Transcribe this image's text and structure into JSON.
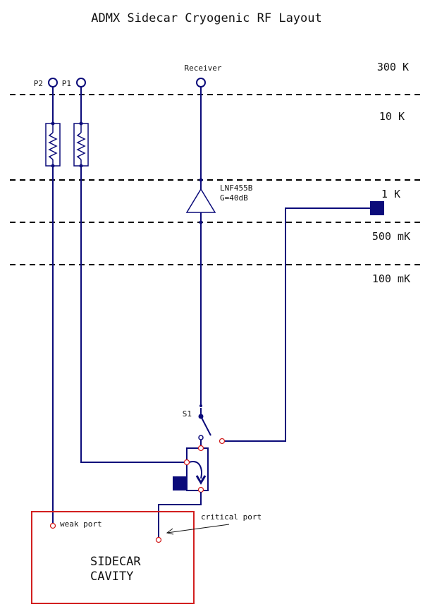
{
  "title": "ADMX Sidecar Cryogenic RF Layout",
  "stages": [
    "300 K",
    "10 K",
    "1 K",
    "500 mK",
    "100 mK"
  ],
  "ports": {
    "p2": "P2",
    "p1": "P1",
    "receiver": "Receiver"
  },
  "amplifier": {
    "model": "LNF455B",
    "gain": "G=40dB"
  },
  "switch": {
    "label": "S1"
  },
  "cavity": {
    "line1": "SIDECAR",
    "line2": "CAVITY",
    "weak_port": "weak port",
    "critical_port": "critical port"
  },
  "colors": {
    "wire": "#0b0b7a",
    "cavity": "#d21f1f",
    "stage_lines": "#000000"
  }
}
